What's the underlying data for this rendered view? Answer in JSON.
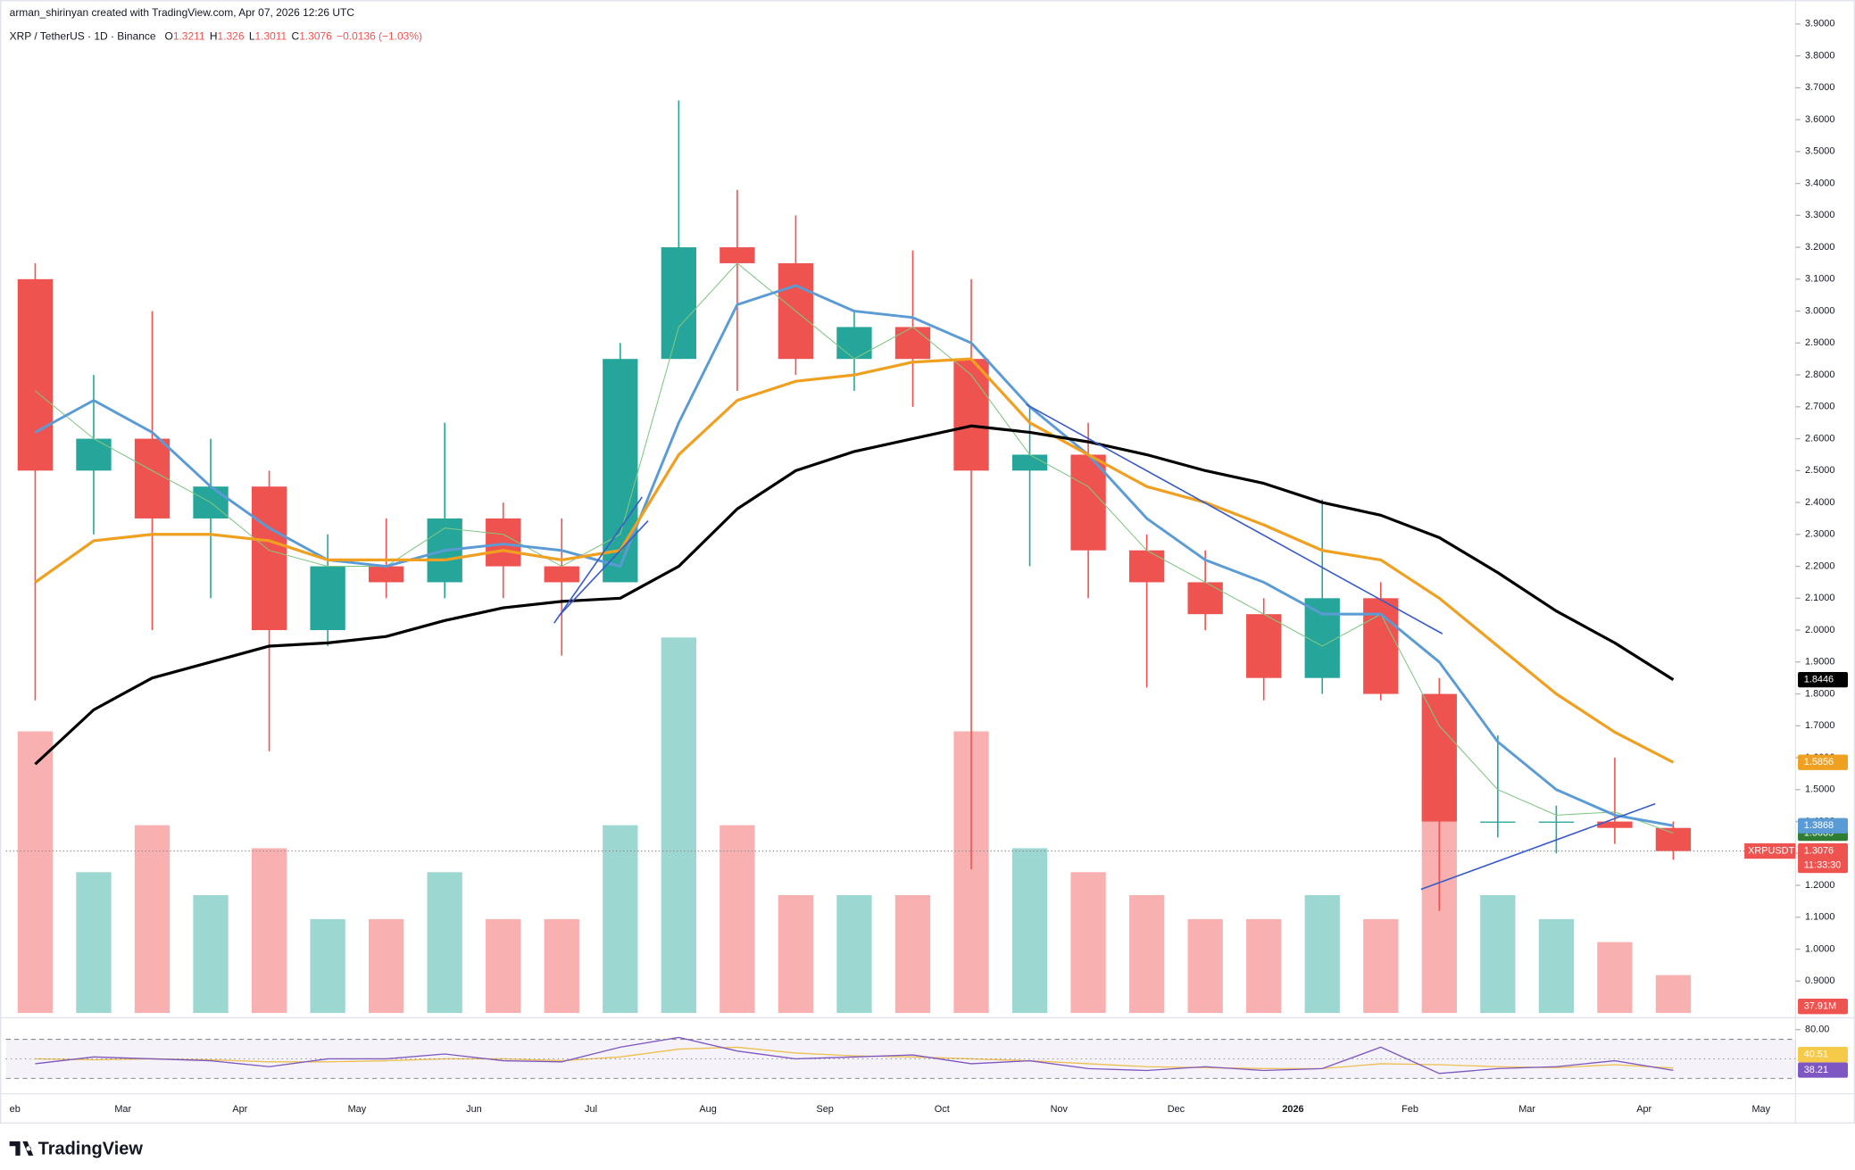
{
  "chart_data": {
    "type": "candlestick",
    "credit": "arman_shirinyan created with TradingView.com, Apr 07, 2026 12:26 UTC",
    "title": "XRP / TetherUS · 1D · Binance",
    "ohlc_legend": [
      {
        "label": "O",
        "value": 1.3211
      },
      {
        "label": "H",
        "value": 1.326
      },
      {
        "label": "L",
        "value": 1.3011
      },
      {
        "label": "C",
        "value": 1.3076
      }
    ],
    "change": "−0.0136 (−1.03%)",
    "symbol_tag": "XRPUSDT",
    "countdown": "11:33:30",
    "brand": "TradingView",
    "categories": [
      "eb",
      null,
      "Mar",
      null,
      "Apr",
      null,
      "May",
      null,
      "Jun",
      null,
      "Jul",
      null,
      "Aug",
      null,
      "Sep",
      null,
      "Oct",
      null,
      "Nov",
      null,
      "Dec",
      null,
      "2026",
      null,
      "Feb",
      null,
      "Mar",
      null,
      "Apr",
      null,
      "May"
    ],
    "open": [
      3.1,
      2.5,
      2.6,
      2.35,
      2.45,
      2.0,
      2.2,
      2.15,
      2.35,
      2.2,
      2.15,
      2.85,
      3.2,
      3.15,
      2.85,
      2.95,
      2.85,
      2.5,
      2.55,
      2.25,
      2.15,
      2.05,
      1.85,
      2.1,
      1.8,
      1.4,
      1.4,
      1.4,
      1.38,
      null,
      null
    ],
    "high": [
      3.15,
      2.8,
      3.0,
      2.6,
      2.5,
      2.3,
      2.35,
      2.65,
      2.4,
      2.35,
      2.9,
      3.66,
      3.38,
      3.3,
      3.0,
      3.19,
      3.1,
      2.7,
      2.65,
      2.3,
      2.25,
      2.1,
      2.41,
      2.15,
      1.85,
      1.67,
      1.45,
      1.6,
      1.4,
      null,
      null
    ],
    "low": [
      1.78,
      2.3,
      2.0,
      2.1,
      1.62,
      1.95,
      2.1,
      2.1,
      2.1,
      1.92,
      2.15,
      2.85,
      2.75,
      2.8,
      2.75,
      2.7,
      1.25,
      2.2,
      2.1,
      1.82,
      2.0,
      1.78,
      1.8,
      1.78,
      1.12,
      1.35,
      1.3,
      1.33,
      1.28,
      null,
      null
    ],
    "close": [
      2.5,
      2.6,
      2.35,
      2.45,
      2.0,
      2.2,
      2.15,
      2.35,
      2.2,
      2.15,
      2.85,
      3.2,
      3.15,
      2.85,
      2.95,
      2.85,
      2.5,
      2.55,
      2.25,
      2.15,
      2.05,
      1.85,
      2.1,
      1.8,
      1.4,
      1.4,
      1.4,
      1.38,
      1.3076,
      null,
      null
    ],
    "colors": {
      "up": "#26a69a",
      "down": "#ef5350"
    },
    "overlays": [
      {
        "color": "#81c784",
        "width": 0.8,
        "values": [
          2.75,
          2.6,
          2.5,
          2.4,
          2.25,
          2.2,
          2.2,
          2.32,
          2.3,
          2.2,
          2.3,
          2.95,
          3.15,
          3.0,
          2.85,
          2.95,
          2.8,
          2.55,
          2.45,
          2.25,
          2.15,
          2.05,
          1.95,
          2.05,
          1.7,
          1.5,
          1.42,
          1.43,
          1.3635,
          null,
          null
        ],
        "tag_color": "#2e7d32"
      },
      {
        "color": "#5b9bd5",
        "width": 2.2,
        "values": [
          2.62,
          2.72,
          2.62,
          2.45,
          2.32,
          2.22,
          2.2,
          2.25,
          2.27,
          2.25,
          2.2,
          2.65,
          3.02,
          3.08,
          3.0,
          2.98,
          2.9,
          2.7,
          2.55,
          2.35,
          2.22,
          2.15,
          2.05,
          2.05,
          1.9,
          1.65,
          1.5,
          1.42,
          1.3868,
          null,
          null
        ],
        "tag_color": "#5b9bd5"
      },
      {
        "color": "#f0a020",
        "width": 2.4,
        "values": [
          2.15,
          2.28,
          2.3,
          2.3,
          2.28,
          2.22,
          2.22,
          2.22,
          2.25,
          2.22,
          2.25,
          2.55,
          2.72,
          2.78,
          2.8,
          2.84,
          2.85,
          2.65,
          2.55,
          2.45,
          2.4,
          2.33,
          2.25,
          2.22,
          2.1,
          1.95,
          1.8,
          1.68,
          1.5856,
          null,
          null
        ],
        "tag_color": "#f0a020"
      },
      {
        "color": "#000000",
        "width": 2.4,
        "values": [
          1.58,
          1.75,
          1.85,
          1.9,
          1.95,
          1.96,
          1.98,
          2.03,
          2.07,
          2.09,
          2.1,
          2.2,
          2.38,
          2.5,
          2.56,
          2.6,
          2.64,
          2.62,
          2.59,
          2.55,
          2.5,
          2.46,
          2.4,
          2.36,
          2.29,
          2.18,
          2.06,
          1.96,
          1.8446,
          null,
          null
        ],
        "tag_color": "#000000"
      }
    ],
    "ylim": [
      0.8,
      3.93
    ],
    "yticks": [
      {
        "value": 0.9,
        "label": "0.9000"
      },
      {
        "value": 1,
        "label": "1.0000"
      },
      {
        "value": 1.1,
        "label": "1.1000"
      },
      {
        "value": 1.2,
        "label": "1.2000"
      },
      {
        "value": 1.3,
        "label": "1.3000"
      },
      {
        "value": 1.4,
        "label": "1.4000"
      },
      {
        "value": 1.5,
        "label": "1.5000"
      },
      {
        "value": 1.6,
        "label": "1.6000"
      },
      {
        "value": 1.7,
        "label": "1.7000"
      },
      {
        "value": 1.8,
        "label": "1.8000"
      },
      {
        "value": 1.9,
        "label": "1.9000"
      },
      {
        "value": 2,
        "label": "2.0000"
      },
      {
        "value": 2.1,
        "label": "2.1000"
      },
      {
        "value": 2.2,
        "label": "2.2000"
      },
      {
        "value": 2.3,
        "label": "2.3000"
      },
      {
        "value": 2.4,
        "label": "2.4000"
      },
      {
        "value": 2.5,
        "label": "2.5000"
      },
      {
        "value": 2.6,
        "label": "2.6000"
      },
      {
        "value": 2.7,
        "label": "2.7000"
      },
      {
        "value": 2.8,
        "label": "2.8000"
      },
      {
        "value": 2.9,
        "label": "2.9000"
      },
      {
        "value": 3,
        "label": "3.0000"
      },
      {
        "value": 3.1,
        "label": "3.1000"
      },
      {
        "value": 3.2,
        "label": "3.2000"
      },
      {
        "value": 3.3,
        "label": "3.3000"
      },
      {
        "value": 3.4,
        "label": "3.4000"
      },
      {
        "value": 3.5,
        "label": "3.5000"
      },
      {
        "value": 3.6,
        "label": "3.6000"
      },
      {
        "value": 3.7,
        "label": "3.7000"
      },
      {
        "value": 3.8,
        "label": "3.8000"
      },
      {
        "value": 3.9,
        "label": "3.9000"
      }
    ],
    "volume": {
      "ylim": [
        0,
        1000000000
      ],
      "values": [
        282000000,
        141000000,
        188000000,
        118000000,
        165000000,
        94000000,
        94000000,
        141000000,
        94000000,
        94000000,
        188000000,
        376000000,
        188000000,
        118000000,
        118000000,
        118000000,
        282000000,
        165000000,
        141000000,
        118000000,
        94000000,
        94000000,
        118000000,
        94000000,
        235000000,
        118000000,
        94000000,
        71000000,
        37910000,
        null,
        null
      ],
      "value_labels": [
        null,
        null,
        null,
        null,
        null,
        null,
        null,
        null,
        null,
        null,
        null,
        null,
        null,
        null,
        null,
        null,
        null,
        null,
        null,
        null,
        null,
        null,
        null,
        null,
        null,
        null,
        null,
        null,
        "37.91M",
        null,
        null
      ]
    },
    "rsi": {
      "ylim": [
        20,
        90
      ],
      "yticks": [
        {
          "value": 80,
          "label": "80.00"
        }
      ],
      "levels": [
        70,
        50,
        30
      ],
      "series": [
        {
          "color": "#7e57c2",
          "values": [
            45,
            52,
            50,
            48,
            42,
            50,
            50,
            55,
            48,
            47,
            62,
            72,
            58,
            50,
            52,
            54,
            45,
            48,
            40,
            38,
            42,
            38,
            40,
            62,
            35,
            40,
            42,
            48,
            38.21,
            null,
            null
          ]
        },
        {
          "color": "#f7c948",
          "values": [
            50,
            49,
            50,
            49,
            47,
            47,
            48,
            50,
            50,
            48,
            52,
            60,
            62,
            56,
            53,
            52,
            50,
            48,
            45,
            42,
            41,
            40,
            40,
            45,
            44,
            42,
            41,
            44,
            40.51,
            null,
            null
          ]
        }
      ]
    }
  }
}
